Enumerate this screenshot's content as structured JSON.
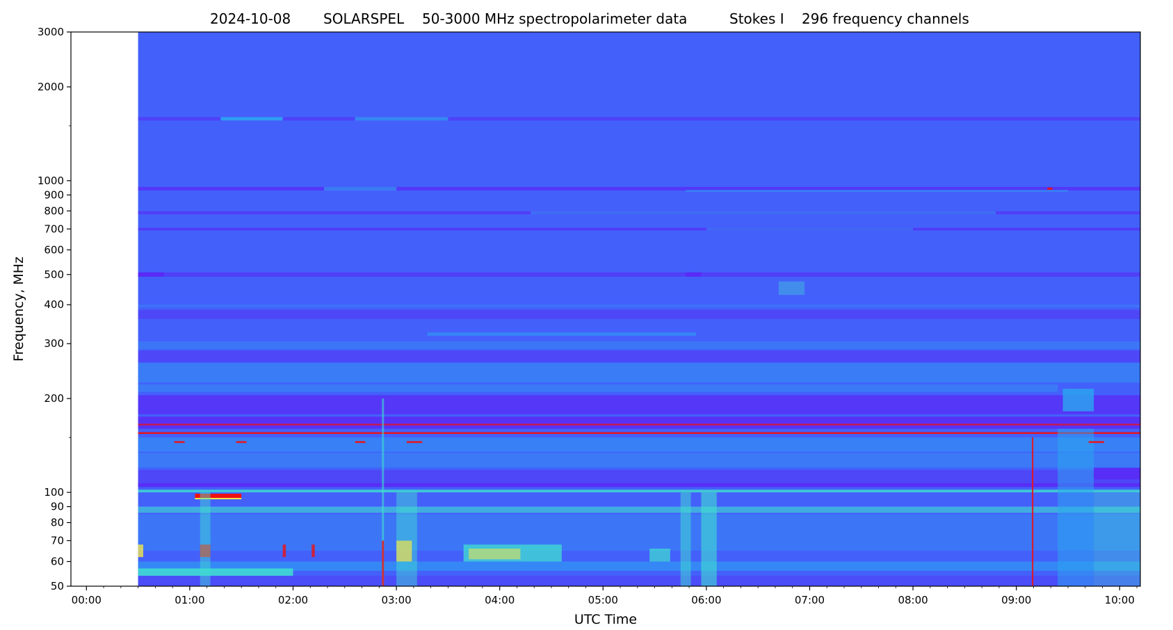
{
  "chart_data": {
    "type": "heatmap",
    "title_parts": [
      "2024-10-08",
      "SOLARSPEL",
      "50-3000 MHz spectropolarimeter data",
      "Stokes I",
      "296 frequency channels"
    ],
    "xlabel": "UTC Time",
    "ylabel": "Frequency, MHz",
    "x_unit": "hours UTC",
    "xlim": [
      -0.15,
      10.2
    ],
    "ylim": [
      50,
      3000
    ],
    "y_scale": "log",
    "x_ticks": [
      {
        "value": 0,
        "label": "00:00"
      },
      {
        "value": 1,
        "label": "01:00"
      },
      {
        "value": 2,
        "label": "02:00"
      },
      {
        "value": 3,
        "label": "03:00"
      },
      {
        "value": 4,
        "label": "04:00"
      },
      {
        "value": 5,
        "label": "05:00"
      },
      {
        "value": 6,
        "label": "06:00"
      },
      {
        "value": 7,
        "label": "07:00"
      },
      {
        "value": 8,
        "label": "08:00"
      },
      {
        "value": 9,
        "label": "09:00"
      },
      {
        "value": 10,
        "label": "10:00"
      }
    ],
    "y_ticks": [
      {
        "value": 50,
        "label": "50"
      },
      {
        "value": 60,
        "label": "60"
      },
      {
        "value": 70,
        "label": "70"
      },
      {
        "value": 80,
        "label": "80"
      },
      {
        "value": 90,
        "label": "90"
      },
      {
        "value": 100,
        "label": "100"
      },
      {
        "value": 200,
        "label": "200"
      },
      {
        "value": 300,
        "label": "300"
      },
      {
        "value": 400,
        "label": "400"
      },
      {
        "value": 500,
        "label": "500"
      },
      {
        "value": 600,
        "label": "600"
      },
      {
        "value": 700,
        "label": "700"
      },
      {
        "value": 800,
        "label": "800"
      },
      {
        "value": 900,
        "label": "900"
      },
      {
        "value": 1000,
        "label": "1000"
      },
      {
        "value": 2000,
        "label": "2000"
      },
      {
        "value": 3000,
        "label": "3000"
      }
    ],
    "y_minor_ticks": [
      150,
      1500
    ],
    "data_start_hour": 0.5,
    "data_end_hour": 10.2,
    "colormap": [
      "#4460fb",
      "#5a2af5",
      "#2aa8f0",
      "#40e0d0",
      "#f2e64a",
      "#ee1111"
    ],
    "background_color": "#4460fb",
    "bands": [
      {
        "f_low": 1560,
        "f_high": 1600,
        "t_start": 0.5,
        "t_end": 10.2,
        "color": "#5a2af5",
        "opacity": 0.55
      },
      {
        "f_low": 1560,
        "f_high": 1600,
        "t_start": 1.3,
        "t_end": 1.9,
        "color": "#2aa8f0",
        "opacity": 0.9
      },
      {
        "f_low": 1560,
        "f_high": 1600,
        "t_start": 2.6,
        "t_end": 3.5,
        "color": "#2aa8f0",
        "opacity": 0.7
      },
      {
        "f_low": 930,
        "f_high": 955,
        "t_start": 0.5,
        "t_end": 10.2,
        "color": "#5a2af5",
        "opacity": 0.75
      },
      {
        "f_low": 930,
        "f_high": 955,
        "t_start": 2.3,
        "t_end": 3.0,
        "color": "#2aa8f0",
        "opacity": 0.6
      },
      {
        "f_low": 920,
        "f_high": 935,
        "t_start": 5.8,
        "t_end": 9.5,
        "color": "#2aa8f0",
        "opacity": 0.45
      },
      {
        "f_low": 780,
        "f_high": 798,
        "t_start": 0.5,
        "t_end": 10.2,
        "color": "#5a2af5",
        "opacity": 0.6
      },
      {
        "f_low": 780,
        "f_high": 798,
        "t_start": 4.3,
        "t_end": 8.8,
        "color": "#2aa8f0",
        "opacity": 0.45
      },
      {
        "f_low": 692,
        "f_high": 706,
        "t_start": 0.5,
        "t_end": 10.2,
        "color": "#5a2af5",
        "opacity": 0.65
      },
      {
        "f_low": 692,
        "f_high": 706,
        "t_start": 6.0,
        "t_end": 8.0,
        "color": "#2aa8f0",
        "opacity": 0.4
      },
      {
        "f_low": 492,
        "f_high": 508,
        "t_start": 0.5,
        "t_end": 10.2,
        "color": "#5a2af5",
        "opacity": 0.6
      },
      {
        "f_low": 492,
        "f_high": 508,
        "t_start": 0.5,
        "t_end": 0.75,
        "color": "#5a2af5",
        "opacity": 1.0
      },
      {
        "f_low": 492,
        "f_high": 508,
        "t_start": 5.8,
        "t_end": 5.95,
        "color": "#5a2af5",
        "opacity": 1.0
      },
      {
        "f_low": 392,
        "f_high": 400,
        "t_start": 0.5,
        "t_end": 10.2,
        "color": "#2aa8f0",
        "opacity": 0.25
      },
      {
        "f_low": 360,
        "f_high": 385,
        "t_start": 0.5,
        "t_end": 10.2,
        "color": "#5a2af5",
        "opacity": 0.45
      },
      {
        "f_low": 318,
        "f_high": 326,
        "t_start": 3.3,
        "t_end": 5.9,
        "color": "#2aa8f0",
        "opacity": 0.5
      },
      {
        "f_low": 288,
        "f_high": 305,
        "t_start": 0.5,
        "t_end": 10.2,
        "color": "#2aa8f0",
        "opacity": 0.3
      },
      {
        "f_low": 262,
        "f_high": 285,
        "t_start": 0.5,
        "t_end": 10.2,
        "color": "#5a2af5",
        "opacity": 0.45
      },
      {
        "f_low": 225,
        "f_high": 260,
        "t_start": 0.5,
        "t_end": 10.2,
        "color": "#2aa8f0",
        "opacity": 0.4
      },
      {
        "f_low": 210,
        "f_high": 222,
        "t_start": 0.5,
        "t_end": 9.4,
        "color": "#2aa8f0",
        "opacity": 0.35
      },
      {
        "f_low": 178,
        "f_high": 205,
        "t_start": 0.5,
        "t_end": 10.2,
        "color": "#5a2af5",
        "opacity": 0.75
      },
      {
        "f_low": 182,
        "f_high": 215,
        "t_start": 9.45,
        "t_end": 9.75,
        "color": "#2aa8f0",
        "opacity": 0.8
      },
      {
        "f_low": 160,
        "f_high": 175,
        "t_start": 0.5,
        "t_end": 10.2,
        "color": "#5a2af5",
        "opacity": 0.85
      },
      {
        "f_low": 164,
        "f_high": 166,
        "t_start": 0.5,
        "t_end": 10.2,
        "color": "#ee1111",
        "opacity": 0.75
      },
      {
        "f_low": 154,
        "f_high": 156,
        "t_start": 0.5,
        "t_end": 10.2,
        "color": "#ee1111",
        "opacity": 0.95
      },
      {
        "f_low": 135,
        "f_high": 150,
        "t_start": 0.5,
        "t_end": 10.2,
        "color": "#2aa8f0",
        "opacity": 0.45
      },
      {
        "f_low": 120,
        "f_high": 134,
        "t_start": 0.5,
        "t_end": 10.2,
        "color": "#2aa8f0",
        "opacity": 0.35
      },
      {
        "f_low": 106,
        "f_high": 118,
        "t_start": 0.5,
        "t_end": 10.2,
        "color": "#5a2af5",
        "opacity": 0.45
      },
      {
        "f_low": 104,
        "f_high": 107,
        "t_start": 0.5,
        "t_end": 10.2,
        "color": "#5a2af5",
        "opacity": 0.9
      },
      {
        "f_low": 100,
        "f_high": 102,
        "t_start": 0.5,
        "t_end": 10.2,
        "color": "#40e0d0",
        "opacity": 0.8
      },
      {
        "f_low": 96,
        "f_high": 99,
        "t_start": 1.05,
        "t_end": 1.5,
        "color": "#ee1111",
        "opacity": 1.0
      },
      {
        "f_low": 95,
        "f_high": 96,
        "t_start": 1.05,
        "t_end": 1.5,
        "color": "#f2e64a",
        "opacity": 1.0
      },
      {
        "f_low": 86,
        "f_high": 90,
        "t_start": 0.5,
        "t_end": 10.2,
        "color": "#40e0d0",
        "opacity": 0.6
      },
      {
        "f_low": 65,
        "f_high": 85,
        "t_start": 0.5,
        "t_end": 10.2,
        "color": "#2aa8f0",
        "opacity": 0.3
      },
      {
        "f_low": 60,
        "f_high": 68,
        "t_start": 3.65,
        "t_end": 4.6,
        "color": "#40e0d0",
        "opacity": 0.75
      },
      {
        "f_low": 61,
        "f_high": 66,
        "t_start": 3.7,
        "t_end": 4.2,
        "color": "#f2e64a",
        "opacity": 0.55
      },
      {
        "f_low": 60,
        "f_high": 66,
        "t_start": 5.45,
        "t_end": 5.65,
        "color": "#40e0d0",
        "opacity": 0.7
      },
      {
        "f_low": 56,
        "f_high": 60,
        "t_start": 0.5,
        "t_end": 10.2,
        "color": "#2aa8f0",
        "opacity": 0.55
      },
      {
        "f_low": 54,
        "f_high": 57,
        "t_start": 0.5,
        "t_end": 2.0,
        "color": "#40e0d0",
        "opacity": 0.85
      },
      {
        "f_low": 50,
        "f_high": 54,
        "t_start": 0.5,
        "t_end": 10.2,
        "color": "#5a2af5",
        "opacity": 0.35
      },
      {
        "f_low": 50,
        "f_high": 160,
        "t_start": 9.4,
        "t_end": 9.75,
        "color": "#2aa8f0",
        "opacity": 0.5
      },
      {
        "f_low": 50,
        "f_high": 100,
        "t_start": 9.75,
        "t_end": 10.2,
        "color": "#40e0d0",
        "opacity": 0.35
      },
      {
        "f_low": 110,
        "f_high": 120,
        "t_start": 9.75,
        "t_end": 10.2,
        "color": "#5a2af5",
        "opacity": 0.9
      },
      {
        "f_low": 50,
        "f_high": 100,
        "t_start": 5.95,
        "t_end": 6.1,
        "color": "#40e0d0",
        "opacity": 0.6
      },
      {
        "f_low": 50,
        "f_high": 100,
        "t_start": 5.75,
        "t_end": 5.85,
        "color": "#40e0d0",
        "opacity": 0.5
      },
      {
        "f_low": 50,
        "f_high": 100,
        "t_start": 3.0,
        "t_end": 3.2,
        "color": "#40e0d0",
        "opacity": 0.45
      },
      {
        "f_low": 60,
        "f_high": 70,
        "t_start": 3.0,
        "t_end": 3.15,
        "color": "#f2e64a",
        "opacity": 0.7
      },
      {
        "f_low": 62,
        "f_high": 68,
        "t_start": 1.1,
        "t_end": 1.2,
        "color": "#ee1111",
        "opacity": 0.9
      },
      {
        "f_low": 50,
        "f_high": 100,
        "t_start": 1.1,
        "t_end": 1.2,
        "color": "#40e0d0",
        "opacity": 0.45
      },
      {
        "f_low": 62,
        "f_high": 68,
        "t_start": 0.5,
        "t_end": 0.55,
        "color": "#f2e64a",
        "opacity": 0.8
      },
      {
        "f_low": 62,
        "f_high": 68,
        "t_start": 1.9,
        "t_end": 1.93,
        "color": "#ee1111",
        "opacity": 0.8
      },
      {
        "f_low": 62,
        "f_high": 68,
        "t_start": 2.18,
        "t_end": 2.21,
        "color": "#ee1111",
        "opacity": 0.8
      },
      {
        "f_low": 50,
        "f_high": 200,
        "t_start": 2.86,
        "t_end": 2.88,
        "color": "#40e0d0",
        "opacity": 0.6
      },
      {
        "f_low": 50,
        "f_high": 70,
        "t_start": 2.86,
        "t_end": 2.88,
        "color": "#ee1111",
        "opacity": 0.8
      },
      {
        "f_low": 50,
        "f_high": 150,
        "t_start": 9.15,
        "t_end": 9.165,
        "color": "#ee1111",
        "opacity": 0.85
      },
      {
        "f_low": 144,
        "f_high": 146,
        "t_start": 0.85,
        "t_end": 0.95,
        "color": "#ee1111",
        "opacity": 0.9
      },
      {
        "f_low": 144,
        "f_high": 146,
        "t_start": 1.45,
        "t_end": 1.55,
        "color": "#ee1111",
        "opacity": 0.9
      },
      {
        "f_low": 144,
        "f_high": 146,
        "t_start": 2.6,
        "t_end": 2.7,
        "color": "#ee1111",
        "opacity": 0.9
      },
      {
        "f_low": 144,
        "f_high": 146,
        "t_start": 3.1,
        "t_end": 3.25,
        "color": "#ee1111",
        "opacity": 0.9
      },
      {
        "f_low": 144,
        "f_high": 146,
        "t_start": 9.7,
        "t_end": 9.85,
        "color": "#ee1111",
        "opacity": 0.9
      },
      {
        "f_low": 935,
        "f_high": 950,
        "t_start": 9.3,
        "t_end": 9.35,
        "color": "#ee1111",
        "opacity": 0.9
      },
      {
        "f_low": 430,
        "f_high": 475,
        "t_start": 6.7,
        "t_end": 6.95,
        "color": "#40e0d0",
        "opacity": 0.35
      }
    ]
  }
}
